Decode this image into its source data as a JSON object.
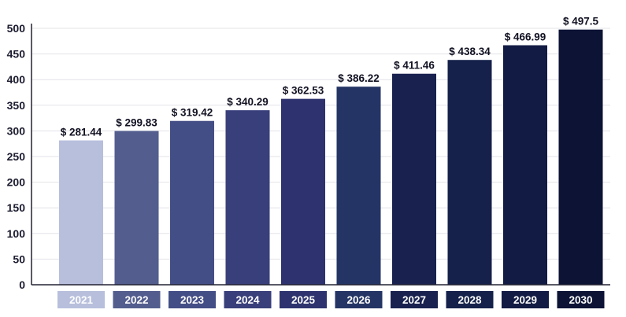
{
  "chart_data": {
    "type": "bar",
    "categories": [
      "2021",
      "2022",
      "2023",
      "2024",
      "2025",
      "2026",
      "2027",
      "2028",
      "2029",
      "2030"
    ],
    "values": [
      281.44,
      299.83,
      319.42,
      340.29,
      362.53,
      386.22,
      411.46,
      438.34,
      466.99,
      497.5
    ],
    "value_labels": [
      "$ 281.44",
      "$ 299.83",
      "$ 319.42",
      "$ 340.29",
      "$ 362.53",
      "$ 386.22",
      "$ 411.46",
      "$ 438.34",
      "$ 466.99",
      "$ 497.5"
    ],
    "yticks": [
      0,
      50,
      100,
      150,
      200,
      250,
      300,
      350,
      400,
      450,
      500
    ],
    "ylim": [
      0,
      500
    ],
    "grid": true,
    "legend": "none",
    "title": "",
    "xlabel": "",
    "ylabel": "",
    "colors": [
      "#b7bfdc",
      "#535d8e",
      "#444e86",
      "#383f7a",
      "#2e336f",
      "#243565",
      "#19224f",
      "#15214a",
      "#121b43",
      "#0c1335"
    ]
  }
}
